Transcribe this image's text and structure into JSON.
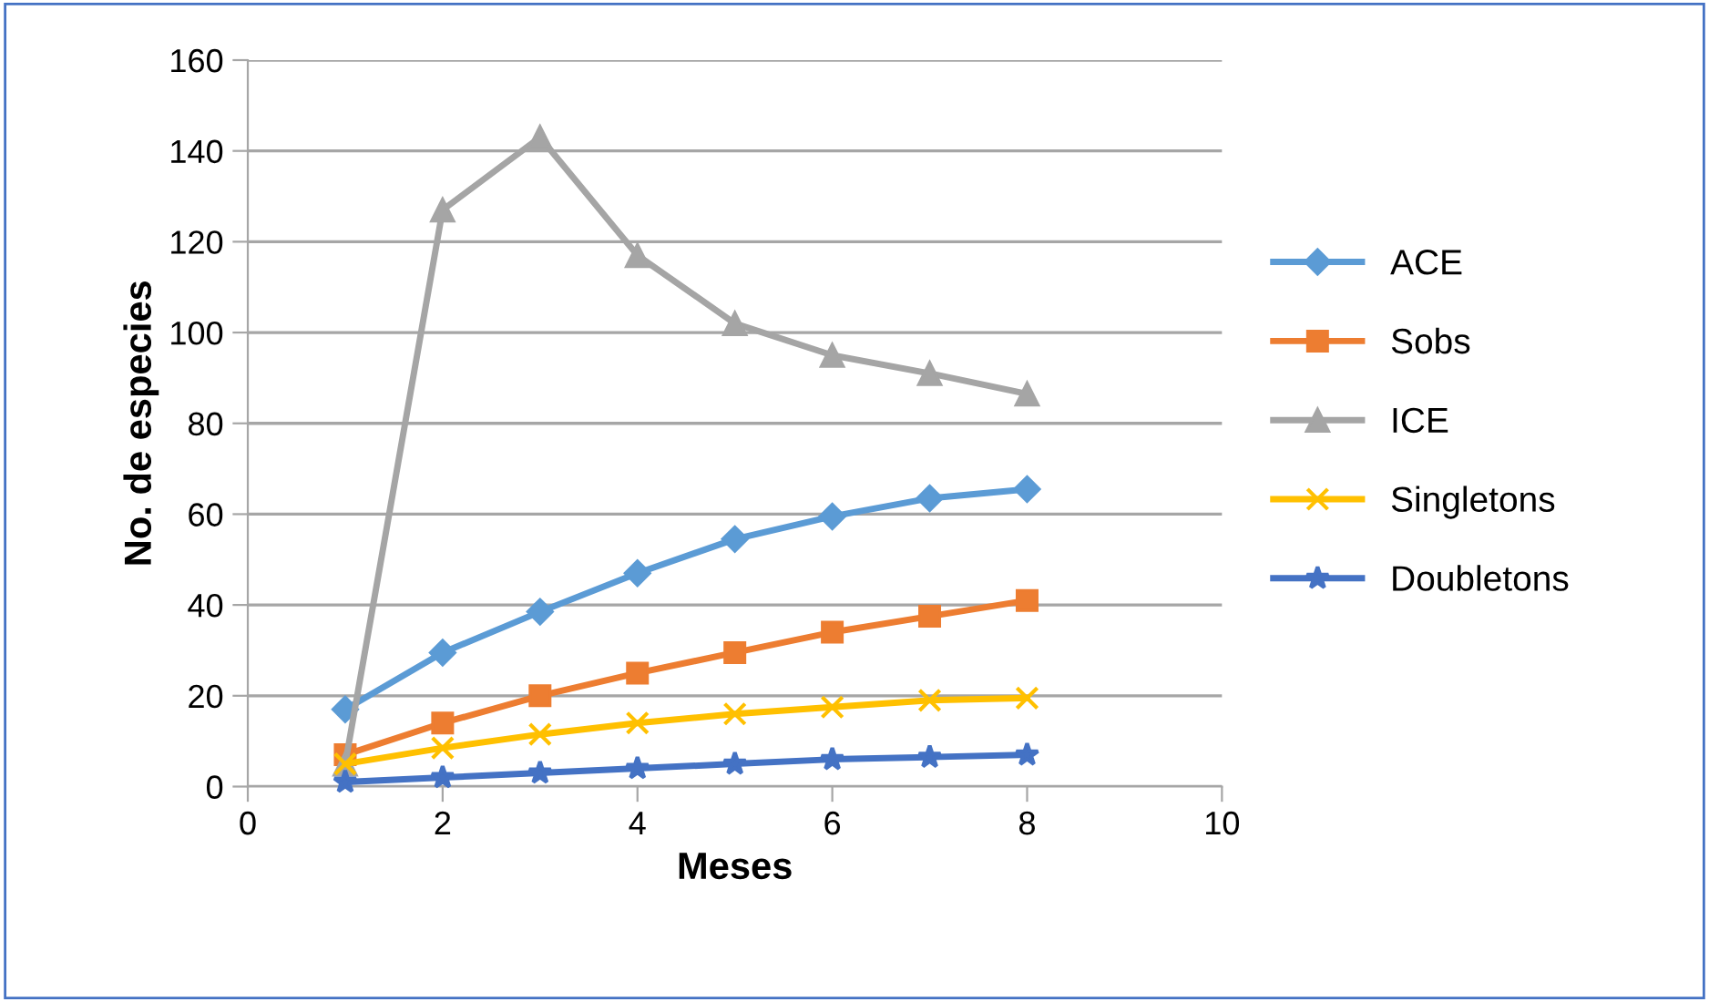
{
  "chart_data": {
    "type": "line",
    "xlabel": "Meses",
    "ylabel": "No. de especies",
    "x": [
      1,
      2,
      3,
      4,
      5,
      6,
      7,
      8
    ],
    "series": [
      {
        "name": "ACE",
        "color": "#5b9bd5",
        "marker": "diamond",
        "values": [
          17,
          29.5,
          38.5,
          47,
          54.5,
          59.5,
          63.5,
          65.5
        ]
      },
      {
        "name": "Sobs",
        "color": "#ed7d31",
        "marker": "square",
        "values": [
          7,
          14,
          20,
          25,
          29.5,
          34,
          37.5,
          41
        ]
      },
      {
        "name": "ICE",
        "color": "#a5a5a5",
        "marker": "triangle",
        "values": [
          5,
          127,
          143,
          117,
          102,
          95,
          91,
          86.5
        ]
      },
      {
        "name": "Singletons",
        "color": "#ffc000",
        "marker": "cross",
        "values": [
          5,
          8.5,
          11.5,
          14,
          16,
          17.5,
          19,
          19.5
        ]
      },
      {
        "name": "Doubletons",
        "color": "#4472c4",
        "marker": "star",
        "values": [
          1,
          2,
          3,
          4,
          5,
          6,
          6.5,
          7
        ]
      }
    ],
    "xlim": [
      0,
      10
    ],
    "xticks": [
      0,
      2,
      4,
      6,
      8,
      10
    ],
    "ylim": [
      0,
      160
    ],
    "yticks": [
      0,
      20,
      40,
      60,
      80,
      100,
      120,
      140,
      160
    ],
    "grid": "y",
    "legend": "right",
    "line_style": "solid"
  }
}
